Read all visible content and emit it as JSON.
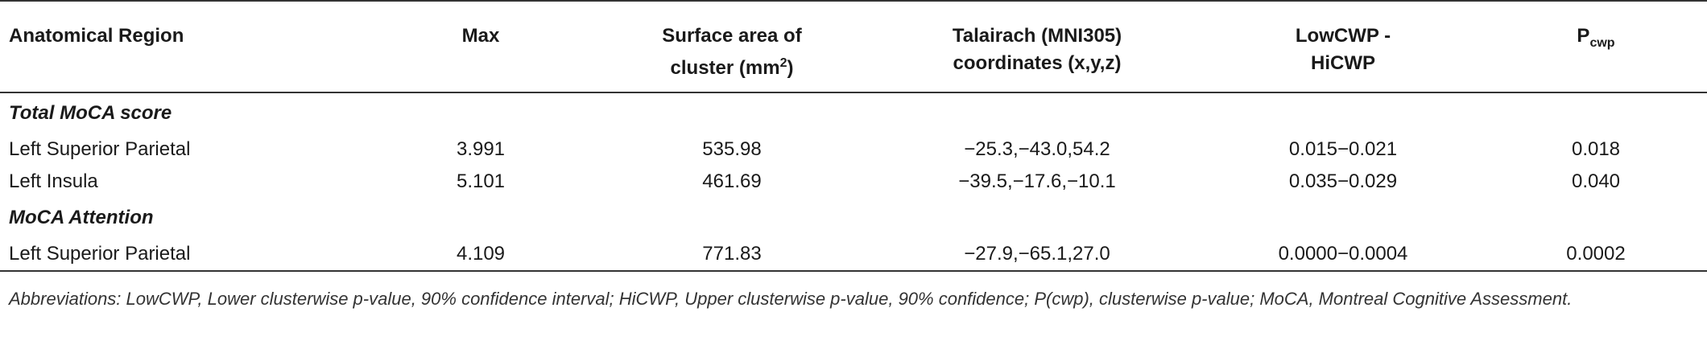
{
  "table": {
    "header": [
      {
        "text": "Anatomical Region"
      },
      {
        "text": "Max"
      },
      {
        "text": "Surface area of cluster (mm",
        "sup": "2",
        "after": ")"
      },
      {
        "text": "Talairach (MNI305) coordinates (x,y,z)"
      },
      {
        "text": "LowCWP - HiCWP"
      },
      {
        "text": "P",
        "sub": "cwp"
      }
    ],
    "sections": [
      {
        "title": "Total MoCA score",
        "rows": [
          [
            "Left Superior Parietal",
            "3.991",
            "535.98",
            "−25.3,−43.0,54.2",
            "0.015−0.021",
            "0.018"
          ],
          [
            "Left Insula",
            "5.101",
            "461.69",
            "−39.5,−17.6,−10.1",
            "0.035−0.029",
            "0.040"
          ]
        ]
      },
      {
        "title": "MoCA Attention",
        "rows": [
          [
            "Left Superior Parietal",
            "4.109",
            "771.83",
            "−27.9,−65.1,27.0",
            "0.0000−0.0004",
            "0.0002"
          ]
        ]
      }
    ]
  },
  "footnote": "Abbreviations: LowCWP, Lower clusterwise p-value, 90% confidence interval; HiCWP, Upper clusterwise p-value, 90% confidence; P(cwp), clusterwise p-value; MoCA, Montreal Cognitive Assessment."
}
